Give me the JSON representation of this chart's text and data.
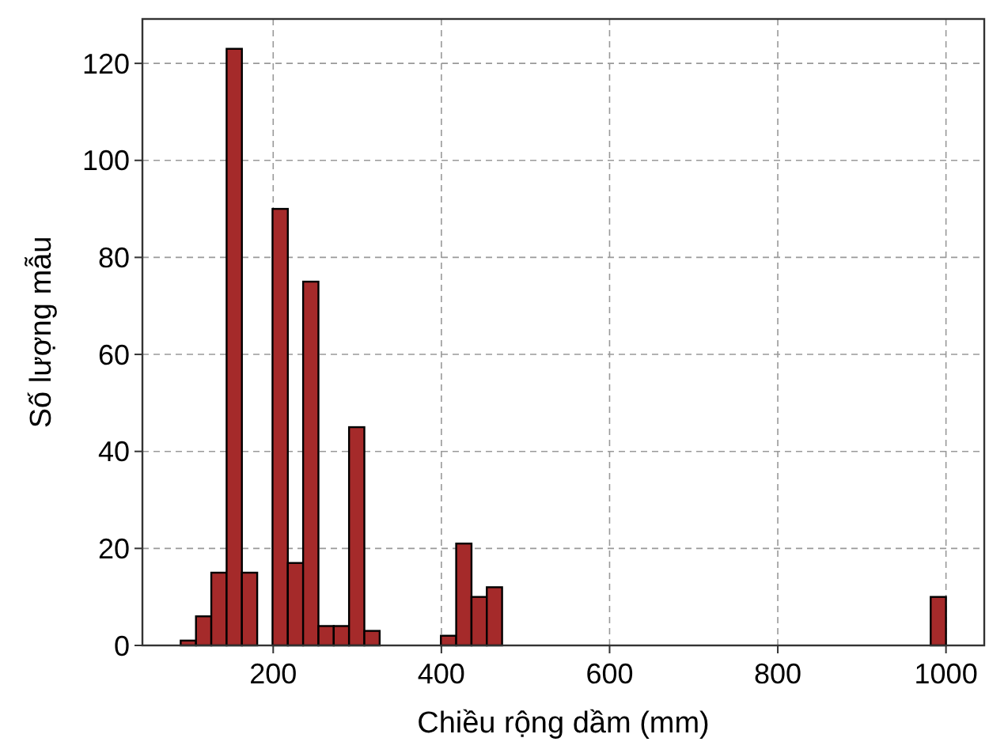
{
  "chart_data": {
    "type": "histogram",
    "xlabel": "Chiều rộng dầm (mm)",
    "ylabel": "Số lượng mẫu",
    "bins": [
      90,
      108.2,
      126.4,
      144.6,
      162.8,
      181,
      199.2,
      217.4,
      235.6,
      253.8,
      272,
      290.2,
      308.4,
      326.6,
      344.8,
      363,
      381.2,
      399.4,
      417.6,
      435.8,
      454,
      472.2,
      490.4,
      508.6,
      526.8,
      545,
      563.2,
      581.4,
      599.6,
      617.8,
      636,
      654.2,
      672.4,
      690.6,
      708.8,
      727,
      745.2,
      763.4,
      781.6,
      799.8,
      818,
      836.2,
      854.4,
      872.6,
      890.8,
      909,
      927.2,
      945.4,
      963.6,
      981.8,
      1000
    ],
    "values": [
      1,
      6,
      15,
      123,
      15,
      0,
      90,
      17,
      75,
      4,
      4,
      45,
      3,
      0,
      0,
      0,
      0,
      2,
      21,
      10,
      12,
      0,
      0,
      0,
      0,
      0,
      0,
      0,
      0,
      0,
      0,
      0,
      0,
      0,
      0,
      0,
      0,
      0,
      0,
      0,
      0,
      0,
      0,
      0,
      0,
      0,
      0,
      0,
      0,
      10
    ],
    "color": "#a52a2a",
    "xlim": [
      44.5,
      1045.5
    ],
    "xticks": [
      200,
      400,
      600,
      800,
      1000
    ],
    "ylim": [
      0,
      129.15
    ],
    "yticks": [
      0,
      20,
      40,
      60,
      80,
      100,
      120
    ],
    "grid": true
  }
}
